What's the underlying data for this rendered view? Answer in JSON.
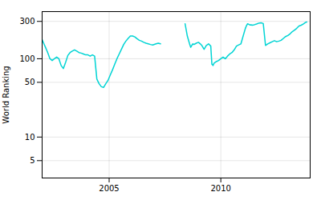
{
  "chart_data": {
    "type": "line",
    "ylabel": "World Ranking",
    "x": [
      2002.0,
      2002.08,
      2002.15,
      2002.25,
      2002.35,
      2002.45,
      2002.55,
      2002.65,
      2002.75,
      2002.85,
      2002.95,
      2003.05,
      2003.15,
      2003.25,
      2003.35,
      2003.45,
      2003.55,
      2003.65,
      2003.75,
      2003.85,
      2003.95,
      2004.05,
      2004.15,
      2004.25,
      2004.35,
      2004.45,
      2004.55,
      2004.65,
      2004.75,
      2004.85,
      2004.95,
      2005.05,
      2005.15,
      2005.25,
      2005.35,
      2005.45,
      2005.55,
      2005.65,
      2005.75,
      2005.85,
      2005.95,
      2006.05,
      2006.15,
      2006.25,
      2006.35,
      2006.45,
      2006.55,
      2006.65,
      2006.75,
      2006.85,
      2006.95,
      2007.1,
      2007.2,
      2007.3,
      null,
      2008.4,
      2008.5,
      2008.6,
      2008.65,
      2008.7,
      2008.75,
      2008.8,
      2008.9,
      2009.0,
      2009.08,
      2009.15,
      2009.25,
      2009.35,
      2009.45,
      2009.55,
      2009.6,
      2009.65,
      2009.7,
      2009.8,
      2009.9,
      2010.0,
      2010.1,
      2010.2,
      2010.3,
      2010.4,
      2010.5,
      2010.6,
      2010.7,
      2010.8,
      2010.9,
      2011.0,
      2011.1,
      2011.15,
      2011.2,
      2011.3,
      2011.35,
      2011.4,
      2011.5,
      2011.6,
      2011.7,
      2011.8,
      2011.9,
      2012.0,
      2012.1,
      2012.2,
      2012.3,
      2012.4,
      2012.5,
      2012.6,
      2012.7,
      2012.8,
      2012.9,
      2013.0,
      2013.1,
      2013.2,
      2013.3,
      2013.4,
      2013.5,
      2013.6,
      2013.7,
      2013.8,
      2013.85
    ],
    "values": [
      175,
      155,
      140,
      120,
      100,
      95,
      100,
      105,
      100,
      82,
      75,
      90,
      110,
      120,
      125,
      130,
      125,
      120,
      118,
      115,
      112,
      112,
      108,
      112,
      108,
      55,
      48,
      44,
      43,
      48,
      53,
      62,
      72,
      85,
      100,
      115,
      132,
      152,
      168,
      182,
      195,
      195,
      190,
      180,
      172,
      168,
      162,
      158,
      155,
      152,
      150,
      155,
      158,
      155,
      null,
      280,
      195,
      155,
      140,
      148,
      155,
      152,
      158,
      162,
      155,
      148,
      132,
      148,
      155,
      145,
      85,
      82,
      88,
      92,
      95,
      100,
      105,
      100,
      108,
      115,
      120,
      130,
      145,
      150,
      155,
      195,
      245,
      265,
      280,
      270,
      272,
      268,
      272,
      278,
      285,
      288,
      282,
      148,
      155,
      160,
      165,
      170,
      165,
      168,
      172,
      182,
      192,
      198,
      208,
      222,
      232,
      245,
      262,
      268,
      278,
      292,
      295
    ],
    "color": "#00d4d4",
    "log": "y",
    "xlim": [
      2002.0,
      2014.0
    ],
    "xticks": [
      2005,
      2010
    ],
    "ylim": [
      3,
      400
    ],
    "yticks": [
      5,
      10,
      50,
      100,
      300
    ],
    "grid": true
  }
}
